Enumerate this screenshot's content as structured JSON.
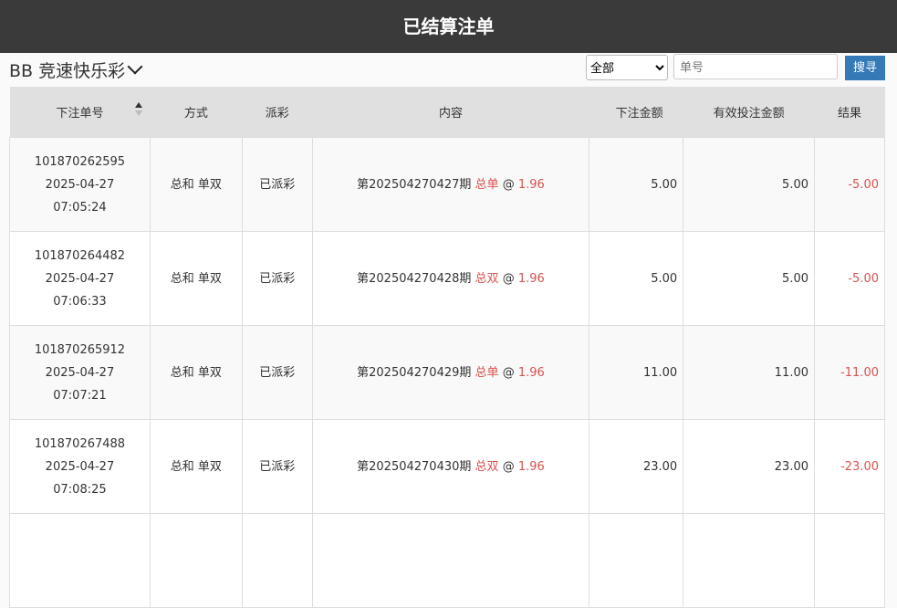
{
  "header": {
    "title": "已结算注单"
  },
  "toolbar": {
    "game": "BB 竞速快乐彩",
    "filter_value": "全部",
    "search_placeholder": "单号",
    "search_label": "搜寻"
  },
  "table": {
    "columns": [
      "下注单号",
      "方式",
      "派彩",
      "内容",
      "下注金额",
      "有效投注金额",
      "结果"
    ],
    "rows": [
      {
        "id": "101870262595",
        "date": "2025-04-27",
        "time": "07:05:24",
        "method": "总和 单双",
        "status": "已派彩",
        "period": "第202504270427期",
        "pick": "总单",
        "at": "@",
        "odds": "1.96",
        "amount": "5.00",
        "valid": "5.00",
        "result": "-5.00"
      },
      {
        "id": "101870264482",
        "date": "2025-04-27",
        "time": "07:06:33",
        "method": "总和 单双",
        "status": "已派彩",
        "period": "第202504270428期",
        "pick": "总双",
        "at": "@",
        "odds": "1.96",
        "amount": "5.00",
        "valid": "5.00",
        "result": "-5.00"
      },
      {
        "id": "101870265912",
        "date": "2025-04-27",
        "time": "07:07:21",
        "method": "总和 单双",
        "status": "已派彩",
        "period": "第202504270429期",
        "pick": "总单",
        "at": "@",
        "odds": "1.96",
        "amount": "11.00",
        "valid": "11.00",
        "result": "-11.00"
      },
      {
        "id": "101870267488",
        "date": "2025-04-27",
        "time": "07:08:25",
        "method": "总和 单双",
        "status": "已派彩",
        "period": "第202504270430期",
        "pick": "总双",
        "at": "@",
        "odds": "1.96",
        "amount": "23.00",
        "valid": "23.00",
        "result": "-23.00"
      }
    ]
  }
}
